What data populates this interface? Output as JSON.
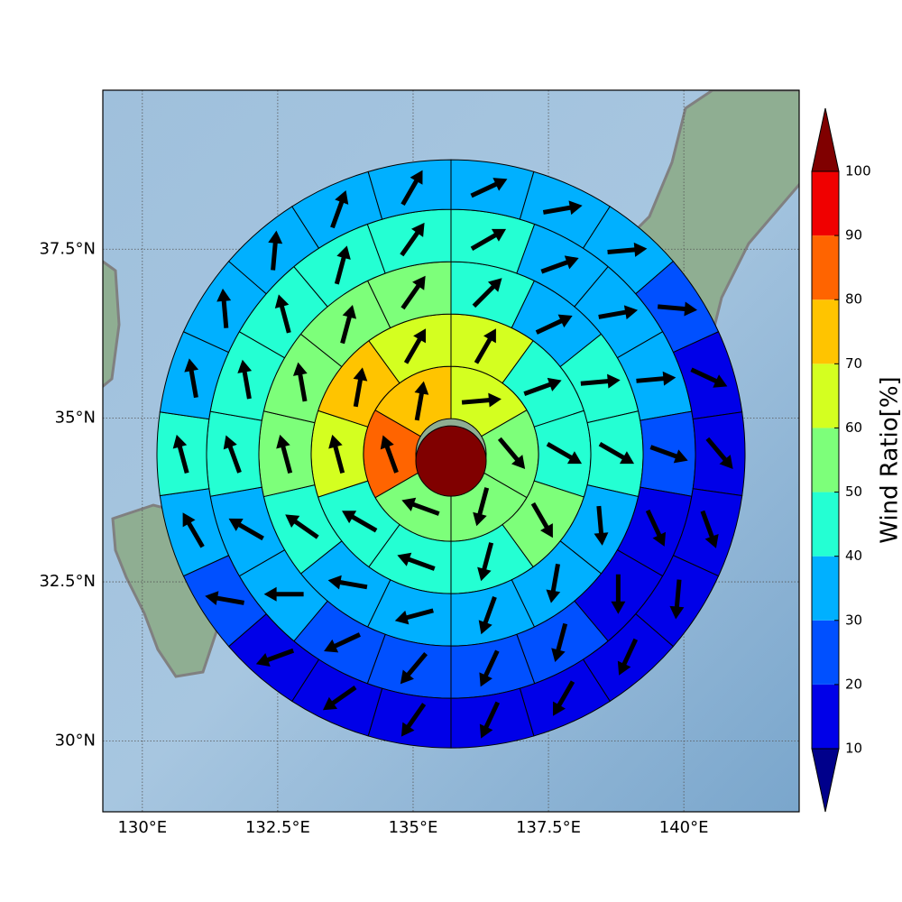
{
  "chart_data": {
    "type": "polar-sector-map",
    "projection": "mercator",
    "xlim": [
      129.27,
      142.13
    ],
    "ylim": [
      28.87,
      39.78
    ],
    "grid": true,
    "xticks": [
      {
        "value": 130,
        "label": "130°E"
      },
      {
        "value": 132.5,
        "label": "132.5°E"
      },
      {
        "value": 135,
        "label": "135°E"
      },
      {
        "value": 137.5,
        "label": "137.5°E"
      },
      {
        "value": 140,
        "label": "140°E"
      }
    ],
    "yticks": [
      {
        "value": 30,
        "label": "30°N"
      },
      {
        "value": 32.5,
        "label": "32.5°N"
      },
      {
        "value": 35,
        "label": "35°N"
      },
      {
        "value": 37.5,
        "label": "37.5°N"
      }
    ],
    "center": {
      "lon": 135.7,
      "lat": 34.46,
      "value": 105
    },
    "rings": [
      {
        "values": [
          65,
          55,
          55,
          55,
          85,
          75
        ],
        "directions": [
          85,
          140,
          195,
          290,
          340,
          10
        ]
      },
      {
        "values": [
          65,
          45,
          45,
          55,
          45,
          45,
          45,
          65,
          75,
          65
        ],
        "directions": [
          30,
          70,
          120,
          150,
          195,
          290,
          300,
          345,
          10,
          30
        ]
      },
      {
        "values": [
          45,
          35,
          45,
          45,
          35,
          35,
          35,
          35,
          35,
          45,
          55,
          55,
          55,
          55
        ],
        "directions": [
          45,
          65,
          85,
          120,
          175,
          190,
          200,
          255,
          280,
          305,
          345,
          350,
          15,
          35
        ]
      },
      {
        "values": [
          45,
          35,
          35,
          35,
          25,
          15,
          15,
          25,
          25,
          25,
          25,
          35,
          35,
          45,
          45,
          45,
          45,
          45
        ],
        "directions": [
          60,
          70,
          80,
          85,
          110,
          155,
          180,
          195,
          205,
          220,
          245,
          270,
          300,
          340,
          350,
          345,
          15,
          35
        ]
      },
      {
        "values": [
          35,
          35,
          35,
          25,
          15,
          15,
          15,
          15,
          15,
          15,
          15,
          15,
          15,
          15,
          25,
          35,
          45,
          35,
          35,
          35,
          35,
          35
        ],
        "directions": [
          65,
          80,
          85,
          95,
          115,
          140,
          160,
          185,
          205,
          210,
          205,
          215,
          235,
          250,
          280,
          330,
          345,
          350,
          355,
          5,
          20,
          30
        ]
      }
    ],
    "colorbar": {
      "label": "Wind Ratio[%]",
      "levels": [
        10,
        20,
        30,
        40,
        50,
        60,
        70,
        80,
        90,
        100
      ],
      "colors": [
        "#0000e8",
        "#0050ff",
        "#00b0ff",
        "#24ffd3",
        "#7dff7a",
        "#d4ff20",
        "#ffc400",
        "#ff6400",
        "#f00000"
      ],
      "under_color": "#00008b",
      "over_color": "#800000"
    }
  }
}
